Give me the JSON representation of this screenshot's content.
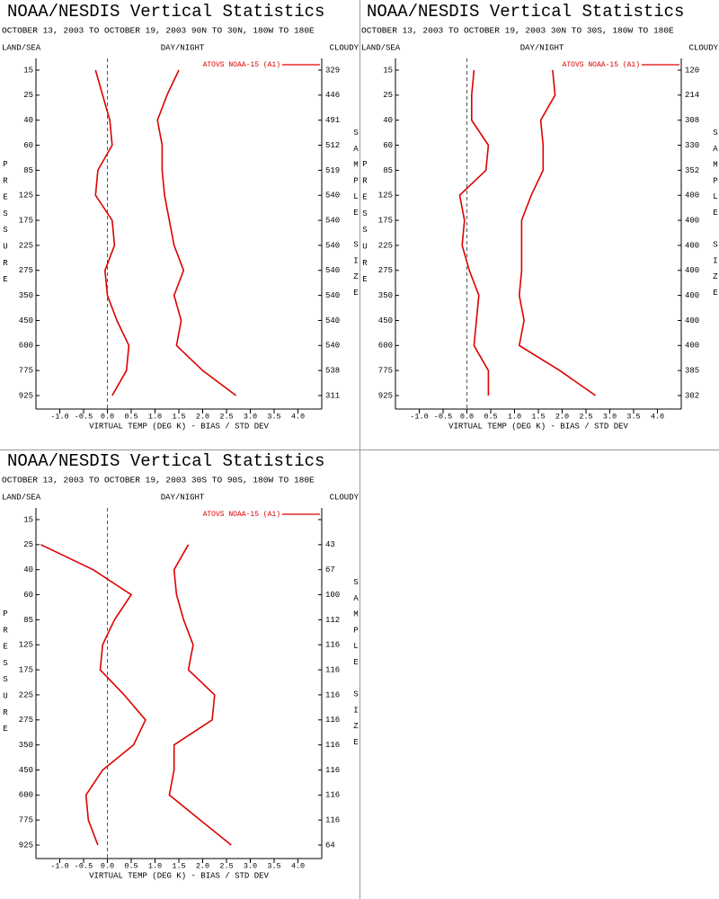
{
  "chart_data": [
    {
      "type": "line",
      "title": "NOAA/NESDIS Vertical Statistics",
      "subtitle": "OCTOBER 13, 2003 TO OCTOBER 19, 2003  90N TO 30N, 180W TO 180E",
      "land_sea_label": "LAND/SEA",
      "day_night_label": "DAY/NIGHT",
      "cloudy_label": "CLOUDY",
      "ylabel": "PRESSURE",
      "y2label": "SAMPLE SIZE",
      "xlabel": "VIRTUAL TEMP (DEG K) - BIAS / STD DEV",
      "legend": "ATOVS NOAA-15 (A1)",
      "categories": [
        15,
        25,
        40,
        60,
        85,
        125,
        175,
        225,
        275,
        350,
        450,
        600,
        775,
        925
      ],
      "sample_size": [
        329,
        446,
        491,
        512,
        519,
        540,
        540,
        540,
        540,
        540,
        540,
        540,
        538,
        311
      ],
      "series": [
        {
          "color": "#dd0000",
          "values": [
            -0.25,
            -0.1,
            0.05,
            0.1,
            -0.2,
            -0.25,
            0.1,
            0.15,
            -0.05,
            0.0,
            0.2,
            0.45,
            0.4,
            0.1
          ]
        },
        {
          "color": "#dd0000",
          "values": [
            1.5,
            1.25,
            1.05,
            1.15,
            1.15,
            1.2,
            1.3,
            1.4,
            1.6,
            1.4,
            1.55,
            1.45,
            2.0,
            2.7
          ]
        }
      ],
      "xlim": [
        -1.5,
        4.5
      ],
      "xticks": [
        {
          "value": -1,
          "label": "-1.0"
        },
        -0.5,
        {
          "value": 0,
          "label": "0.0"
        },
        0.5,
        {
          "value": 1,
          "label": "1.0"
        },
        1.5,
        {
          "value": 2,
          "label": "2.0"
        },
        2.5,
        {
          "value": 3,
          "label": "3.0"
        },
        3.5,
        {
          "value": 4,
          "label": "4.0"
        }
      ],
      "zero_line": true
    },
    {
      "type": "line",
      "title": "NOAA/NESDIS Vertical Statistics",
      "subtitle": "OCTOBER 13, 2003 TO OCTOBER 19, 2003  30N TO 30S, 180W TO 180E",
      "land_sea_label": "LAND/SEA",
      "day_night_label": "DAY/NIGHT",
      "cloudy_label": "CLOUDY",
      "ylabel": "PRESSURE",
      "y2label": "SAMPLE SIZE",
      "xlabel": "VIRTUAL TEMP (DEG K) - BIAS / STD DEV",
      "legend": "ATOVS NOAA-15 (A1)",
      "categories": [
        15,
        25,
        40,
        60,
        85,
        125,
        175,
        225,
        275,
        350,
        450,
        600,
        775,
        925
      ],
      "sample_size": [
        120,
        214,
        308,
        330,
        352,
        400,
        400,
        400,
        400,
        400,
        400,
        400,
        385,
        302
      ],
      "series": [
        {
          "color": "#dd0000",
          "values": [
            0.15,
            0.1,
            0.1,
            0.45,
            0.4,
            -0.15,
            -0.05,
            -0.1,
            0.05,
            0.25,
            0.2,
            0.15,
            0.45,
            0.45
          ]
        },
        {
          "color": "#dd0000",
          "values": [
            1.8,
            1.85,
            1.55,
            1.6,
            1.6,
            1.35,
            1.15,
            1.15,
            1.15,
            1.1,
            1.2,
            1.1,
            1.95,
            2.7
          ]
        }
      ],
      "xlim": [
        -1.5,
        4.5
      ],
      "xticks": [
        {
          "value": -1,
          "label": "-1.0"
        },
        -0.5,
        {
          "value": 0,
          "label": "0.0"
        },
        0.5,
        {
          "value": 1,
          "label": "1.0"
        },
        1.5,
        {
          "value": 2,
          "label": "2.0"
        },
        2.5,
        {
          "value": 3,
          "label": "3.0"
        },
        3.5,
        {
          "value": 4,
          "label": "4.0"
        }
      ],
      "zero_line": true
    },
    {
      "type": "line",
      "title": "NOAA/NESDIS Vertical Statistics",
      "subtitle": "OCTOBER 13, 2003 TO OCTOBER 19, 2003  30S TO 90S, 180W TO 180E",
      "land_sea_label": "LAND/SEA",
      "day_night_label": "DAY/NIGHT",
      "cloudy_label": "CLOUDY",
      "ylabel": "PRESSURE",
      "y2label": "SAMPLE SIZE",
      "xlabel": "VIRTUAL TEMP (DEG K) - BIAS / STD DEV",
      "legend": "ATOVS NOAA-15 (A1)",
      "categories": [
        15,
        25,
        40,
        60,
        85,
        125,
        175,
        225,
        275,
        350,
        450,
        600,
        775,
        925
      ],
      "sample_size": [
        null,
        43,
        67,
        100,
        112,
        116,
        116,
        116,
        116,
        116,
        116,
        116,
        116,
        64
      ],
      "series": [
        {
          "color": "#dd0000",
          "values": [
            null,
            -1.4,
            -0.3,
            0.5,
            0.15,
            -0.1,
            -0.15,
            0.35,
            0.8,
            0.55,
            -0.1,
            -0.45,
            -0.4,
            -0.2
          ]
        },
        {
          "color": "#dd0000",
          "values": [
            null,
            1.7,
            1.4,
            1.45,
            1.6,
            1.8,
            1.7,
            2.25,
            2.2,
            1.4,
            1.4,
            1.3,
            1.95,
            2.6
          ]
        }
      ],
      "xlim": [
        -1.5,
        4.5
      ],
      "xticks": [
        {
          "value": -1,
          "label": "-1.0"
        },
        -0.5,
        {
          "value": 0,
          "label": "0.0"
        },
        0.5,
        {
          "value": 1,
          "label": "1.0"
        },
        1.5,
        {
          "value": 2,
          "label": "2.0"
        },
        2.5,
        {
          "value": 3,
          "label": "3.0"
        },
        3.5,
        {
          "value": 4,
          "label": "4.0"
        }
      ],
      "zero_line": true
    }
  ]
}
